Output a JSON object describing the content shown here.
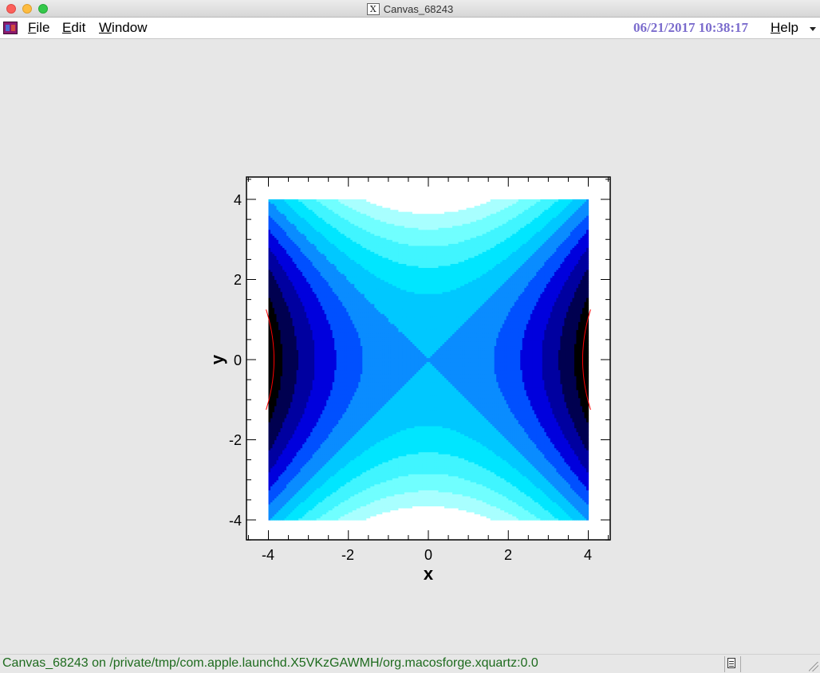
{
  "window": {
    "title": "Canvas_68243",
    "icon": "x11-icon"
  },
  "menubar": {
    "app_icon": "root-icon",
    "items": [
      {
        "label": "File",
        "mnemonic": "F"
      },
      {
        "label": "Edit",
        "mnemonic": "E"
      },
      {
        "label": "Window",
        "mnemonic": "W"
      }
    ],
    "datetime": "06/21/2017 10:38:17",
    "help": {
      "label": "Help",
      "mnemonic": "H"
    }
  },
  "chart_data": {
    "type": "heatmap",
    "subtype": "filled-contour",
    "function": "z = x^2/2 - y^2/2",
    "xlabel": "x",
    "ylabel": "y",
    "xlim": [
      -4.5,
      4.5
    ],
    "ylim": [
      -4.5,
      4.5
    ],
    "data_extent": {
      "x": [
        -4,
        4
      ],
      "y": [
        -4,
        4
      ]
    },
    "x_ticks": [
      -4,
      -2,
      0,
      2,
      4
    ],
    "y_ticks": [
      -4,
      -2,
      0,
      2,
      4
    ],
    "grid": false,
    "legend": "none",
    "colormap": [
      "#000000",
      "#000050",
      "#0000a0",
      "#0000dd",
      "#0050ff",
      "#0a8cff",
      "#00c8ff",
      "#00e6ff",
      "#40f5ff",
      "#70ffff",
      "#a8ffff",
      "#ffffff"
    ],
    "colors": {
      "frame": "#000000",
      "background": "#ffffff",
      "highlight_contour": "#ff0000"
    }
  },
  "statusbar": {
    "text": "Canvas_68243 on /private/tmp/com.apple.launchd.X5VKzGAWMH/org.macosforge.xquartz:0.0",
    "icons": [
      "document-icon",
      "resize-grip-icon"
    ]
  }
}
